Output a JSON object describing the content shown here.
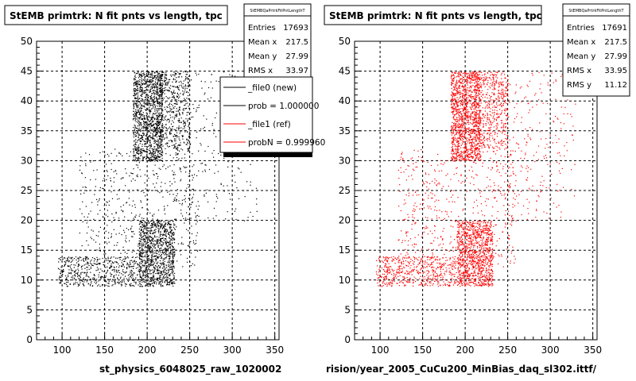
{
  "chart_data": [
    {
      "type": "scatter",
      "title": "StEMB primtrk: N fit pnts vs length, tpc",
      "xlabel": "st_physics_6048025_raw_1020002",
      "ylabel": "",
      "xlim": [
        70,
        355
      ],
      "ylim": [
        0,
        50
      ],
      "x_ticks": [
        100,
        150,
        200,
        250,
        300,
        350
      ],
      "y_ticks": [
        0,
        5,
        10,
        15,
        20,
        25,
        30,
        35,
        40,
        45,
        50
      ],
      "grid": true,
      "marker_color": "#000000",
      "series": [
        {
          "name": "_file0 (new)",
          "color": "#000000",
          "density_regions": [
            {
              "x": [
                183,
                218
              ],
              "y": [
                30,
                45
              ],
              "weight": 5
            },
            {
              "x": [
                210,
                250
              ],
              "y": [
                32,
                45
              ],
              "weight": 2
            },
            {
              "x": [
                190,
                232
              ],
              "y": [
                9,
                20
              ],
              "weight": 4
            },
            {
              "x": [
                95,
                190
              ],
              "y": [
                9,
                14
              ],
              "weight": 2
            },
            {
              "x": [
                120,
                260
              ],
              "y": [
                12,
                32
              ],
              "weight": 2
            },
            {
              "x": [
                230,
                330
              ],
              "y": [
                20,
                45
              ],
              "weight": 1
            }
          ]
        }
      ],
      "stats_box": {
        "header": "StEMBQaPrtrkFitPntLengthT",
        "rows": [
          {
            "label": "Entries",
            "value": "17693"
          },
          {
            "label": "Mean x",
            "value": "217.5"
          },
          {
            "label": "Mean y",
            "value": "27.99"
          },
          {
            "label": "RMS x",
            "value": "33.97"
          }
        ]
      },
      "legend": {
        "placement": "top-right",
        "entries": [
          {
            "label": "_file0 (new)",
            "color": "#000000"
          },
          {
            "label": "prob = 1.000000",
            "color": "#000000"
          },
          {
            "label": "_file1 (ref)",
            "color": "#ff0000"
          },
          {
            "label": "probN = 0.999960",
            "color": "#ff0000"
          }
        ]
      }
    },
    {
      "type": "scatter",
      "title": "StEMB primtrk: N fit pnts vs length, tpc",
      "xlabel": "rision/year_2005_CuCu200_MinBias_daq_sl302.ittf/",
      "ylabel": "",
      "xlim": [
        70,
        355
      ],
      "ylim": [
        0,
        50
      ],
      "x_ticks": [
        100,
        150,
        200,
        250,
        300,
        350
      ],
      "y_ticks": [
        0,
        5,
        10,
        15,
        20,
        25,
        30,
        35,
        40,
        45,
        50
      ],
      "grid": true,
      "marker_color": "#ff0000",
      "series": [
        {
          "name": "_file1 (ref)",
          "color": "#ff0000",
          "density_regions": [
            {
              "x": [
                183,
                218
              ],
              "y": [
                30,
                45
              ],
              "weight": 5
            },
            {
              "x": [
                210,
                250
              ],
              "y": [
                32,
                45
              ],
              "weight": 2
            },
            {
              "x": [
                190,
                232
              ],
              "y": [
                9,
                20
              ],
              "weight": 4
            },
            {
              "x": [
                95,
                190
              ],
              "y": [
                9,
                14
              ],
              "weight": 2
            },
            {
              "x": [
                120,
                260
              ],
              "y": [
                12,
                32
              ],
              "weight": 2
            },
            {
              "x": [
                230,
                330
              ],
              "y": [
                20,
                45
              ],
              "weight": 1
            }
          ]
        }
      ],
      "stats_box": {
        "header": "StEMBQaPrtrkFitPntLengthT",
        "rows": [
          {
            "label": "Entries",
            "value": "17691"
          },
          {
            "label": "Mean x",
            "value": "217.5"
          },
          {
            "label": "Mean y",
            "value": "27.99"
          },
          {
            "label": "RMS x",
            "value": "33.95"
          },
          {
            "label": "RMS y",
            "value": "11.12"
          }
        ]
      }
    }
  ]
}
